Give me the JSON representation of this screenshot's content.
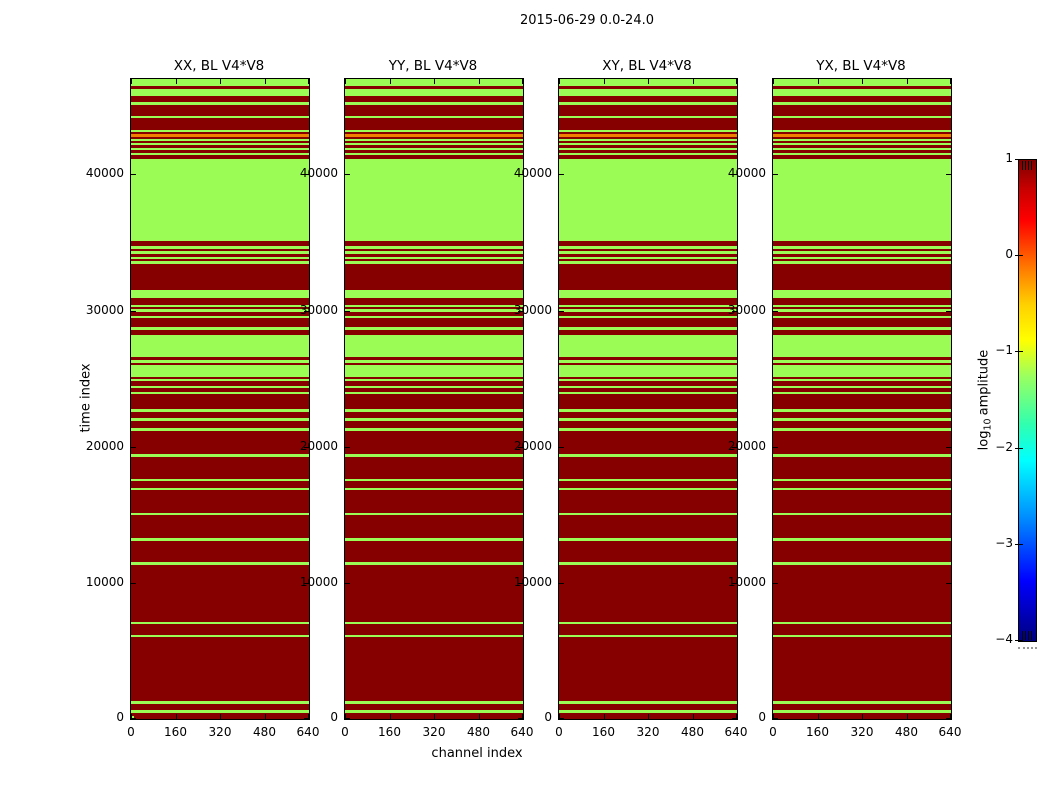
{
  "figure": {
    "background": "#ffffff"
  },
  "chart_data": {
    "type": "heatmap",
    "title": "2015-06-29 0.0-24.0",
    "subplots": [
      {
        "title": "XX, BL V4*V8"
      },
      {
        "title": "YY, BL V4*V8"
      },
      {
        "title": "XY, BL V4*V8"
      },
      {
        "title": "YX, BL V4*V8"
      }
    ],
    "xlabel": "channel index",
    "ylabel": "time index",
    "xlim": [
      0,
      640
    ],
    "xticks": [
      0,
      160,
      320,
      480,
      640
    ],
    "ylim": [
      0,
      47000
    ],
    "yticks": [
      0,
      10000,
      20000,
      30000,
      40000
    ],
    "grid": false,
    "legend": "none",
    "colorbar": {
      "label_prefix": "log",
      "label_sub": "10",
      "label_suffix": "amplitude",
      "ticks": [
        1,
        0,
        -1,
        -2,
        -3,
        -4
      ],
      "vmin": -4,
      "vmax": 1,
      "colormap": "jet"
    },
    "value_levels": {
      "d": 1.0,
      "g": -1.4,
      "o": 0.3
    },
    "level_colors": {
      "d": "#870000",
      "g": "#9afc54",
      "o": "#f08000"
    },
    "bands_note": "bands apply to all 4 subplots across full channel range; [time_start, time_end, level]",
    "bands": [
      [
        46500,
        47000,
        "g"
      ],
      [
        46250,
        46500,
        "d"
      ],
      [
        45750,
        46250,
        "g"
      ],
      [
        45300,
        45750,
        "d"
      ],
      [
        45100,
        45300,
        "g"
      ],
      [
        44300,
        45100,
        "d"
      ],
      [
        44150,
        44300,
        "g"
      ],
      [
        43250,
        44150,
        "d"
      ],
      [
        43100,
        43250,
        "g"
      ],
      [
        42950,
        43100,
        "d"
      ],
      [
        42750,
        42950,
        "o"
      ],
      [
        42600,
        42750,
        "d"
      ],
      [
        42450,
        42600,
        "g"
      ],
      [
        42300,
        42450,
        "d"
      ],
      [
        42150,
        42300,
        "g"
      ],
      [
        41950,
        42150,
        "d"
      ],
      [
        41800,
        41950,
        "g"
      ],
      [
        41550,
        41800,
        "d"
      ],
      [
        41450,
        41550,
        "g"
      ],
      [
        41150,
        41450,
        "d"
      ],
      [
        35100,
        41150,
        "g"
      ],
      [
        34700,
        35100,
        "d"
      ],
      [
        34500,
        34700,
        "g"
      ],
      [
        34350,
        34500,
        "d"
      ],
      [
        34150,
        34350,
        "g"
      ],
      [
        33900,
        34150,
        "d"
      ],
      [
        33750,
        33900,
        "g"
      ],
      [
        33600,
        33750,
        "d"
      ],
      [
        33450,
        33600,
        "g"
      ],
      [
        31500,
        33450,
        "d"
      ],
      [
        30950,
        31500,
        "g"
      ],
      [
        30400,
        30950,
        "d"
      ],
      [
        30250,
        30400,
        "g"
      ],
      [
        30100,
        30250,
        "d"
      ],
      [
        29900,
        30100,
        "g"
      ],
      [
        29600,
        29900,
        "d"
      ],
      [
        29450,
        29600,
        "g"
      ],
      [
        28800,
        29450,
        "d"
      ],
      [
        28600,
        28800,
        "g"
      ],
      [
        28200,
        28600,
        "d"
      ],
      [
        26550,
        28200,
        "g"
      ],
      [
        26350,
        26550,
        "d"
      ],
      [
        26150,
        26350,
        "g"
      ],
      [
        26000,
        26150,
        "d"
      ],
      [
        25100,
        26000,
        "g"
      ],
      [
        24950,
        25100,
        "d"
      ],
      [
        24800,
        24950,
        "g"
      ],
      [
        24450,
        24800,
        "d"
      ],
      [
        24300,
        24450,
        "g"
      ],
      [
        24050,
        24300,
        "d"
      ],
      [
        23900,
        24050,
        "g"
      ],
      [
        22750,
        23900,
        "d"
      ],
      [
        22550,
        22750,
        "g"
      ],
      [
        22100,
        22550,
        "d"
      ],
      [
        21900,
        22100,
        "g"
      ],
      [
        21350,
        21900,
        "d"
      ],
      [
        21150,
        21350,
        "g"
      ],
      [
        19450,
        21150,
        "d"
      ],
      [
        19250,
        19450,
        "g"
      ],
      [
        17650,
        19250,
        "d"
      ],
      [
        17450,
        17650,
        "g"
      ],
      [
        16950,
        17450,
        "d"
      ],
      [
        16800,
        16950,
        "g"
      ],
      [
        15150,
        16800,
        "d"
      ],
      [
        15000,
        15150,
        "g"
      ],
      [
        13300,
        15000,
        "d"
      ],
      [
        13100,
        13300,
        "g"
      ],
      [
        11500,
        13100,
        "d"
      ],
      [
        11300,
        11500,
        "g"
      ],
      [
        7150,
        11300,
        "d"
      ],
      [
        6950,
        7150,
        "g"
      ],
      [
        6200,
        6950,
        "d"
      ],
      [
        6000,
        6200,
        "g"
      ],
      [
        1300,
        6000,
        "d"
      ],
      [
        1100,
        1300,
        "g"
      ],
      [
        650,
        1100,
        "d"
      ],
      [
        450,
        650,
        "g"
      ],
      [
        0,
        450,
        "d"
      ]
    ],
    "corner_patch": {
      "panel_index": 0,
      "time_range": [
        0,
        250
      ],
      "channel_range": [
        0,
        12
      ],
      "level": "g"
    }
  }
}
